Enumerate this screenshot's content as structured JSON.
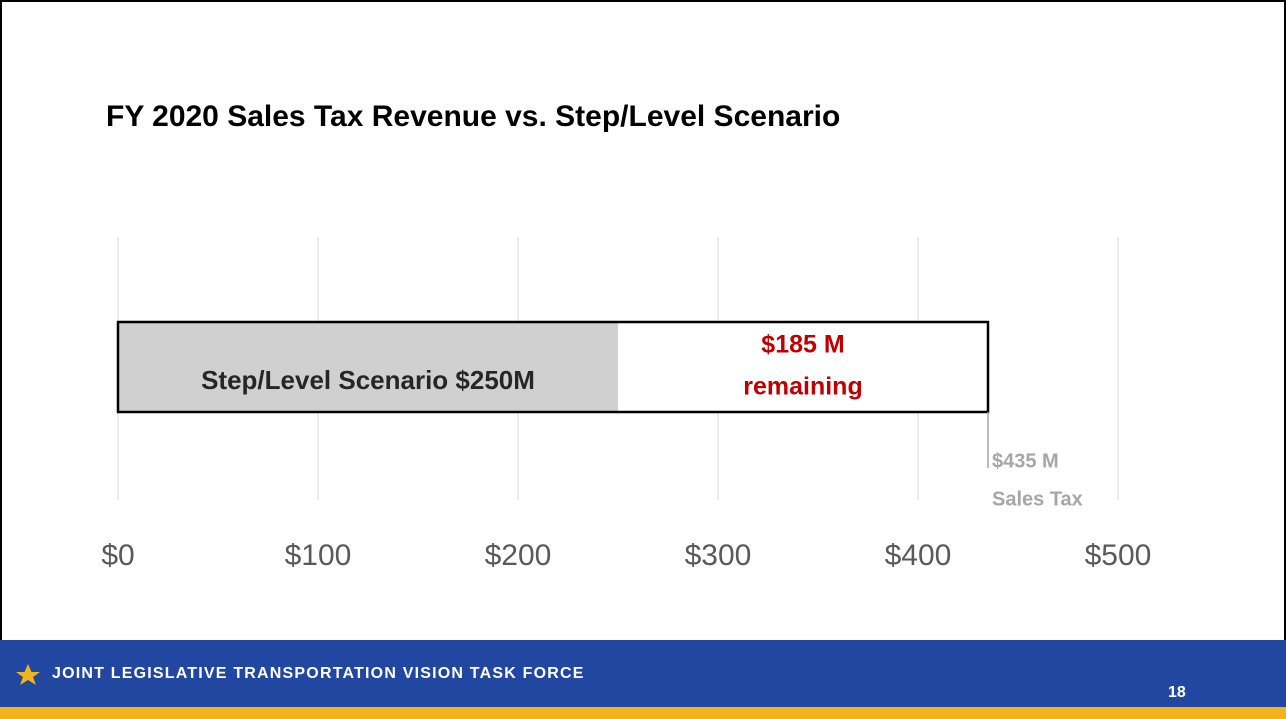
{
  "chart_data": {
    "type": "stacked-hbar",
    "title": "FY 2020 Sales Tax Revenue vs. Step/Level Scenario",
    "categories": [
      null
    ],
    "series": [
      {
        "color": "#d0d0d0",
        "values": [
          250
        ],
        "value_labels": [
          [
            "Step/Level Scenario $250M"
          ]
        ],
        "label_color": "#262626"
      },
      {
        "color": "#ffffff",
        "values": [
          185
        ],
        "value_labels": [
          [
            "$185 M",
            "remaining"
          ]
        ],
        "label_color": "#c00000"
      }
    ],
    "outline_color": "#000000",
    "xlim": [
      0,
      500
    ],
    "xticks": [
      {
        "value": 0,
        "label": "$0"
      },
      {
        "value": 100,
        "label": "$100"
      },
      {
        "value": 200,
        "label": "$200"
      },
      {
        "value": 300,
        "label": "$300"
      },
      {
        "value": 400,
        "label": "$400"
      },
      {
        "value": 500,
        "label": "$500"
      }
    ],
    "grid": true,
    "annotations": [
      {
        "x": 435,
        "text": [
          "$435 M",
          "Sales Tax"
        ],
        "color": "#a6a6a6"
      }
    ]
  },
  "footer": {
    "text": "JOINT LEGISLATIVE TRANSPORTATION VISION TASK FORCE",
    "page": 18
  }
}
